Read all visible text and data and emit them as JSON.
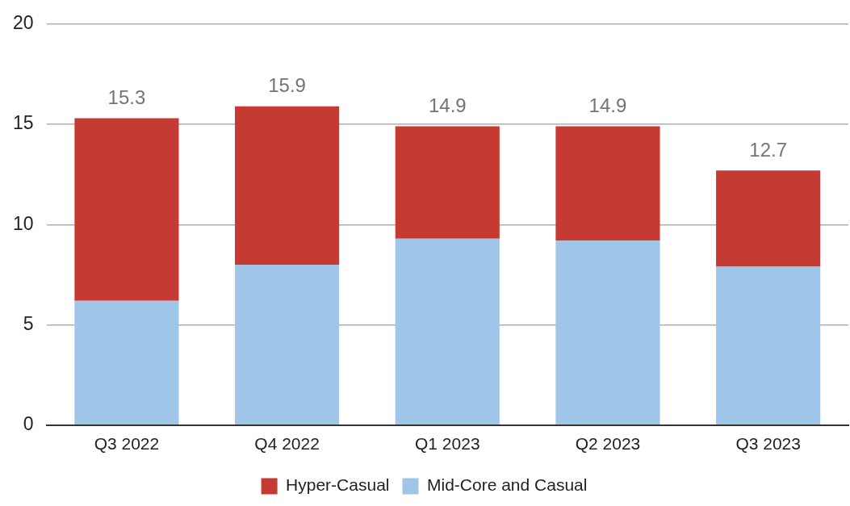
{
  "chart_data": {
    "type": "bar",
    "stacked": true,
    "categories": [
      "Q3 2022",
      "Q4 2022",
      "Q1 2023",
      "Q2 2023",
      "Q3 2023"
    ],
    "series": [
      {
        "name": "Mid-Core and Casual",
        "color": "#9fc5e8",
        "values": [
          6.2,
          8.0,
          9.3,
          9.2,
          7.9
        ]
      },
      {
        "name": "Hyper-Casual",
        "color": "#c53a32",
        "values": [
          9.1,
          7.9,
          5.6,
          5.7,
          4.8
        ]
      }
    ],
    "totals": [
      "15.3",
      "15.9",
      "14.9",
      "14.9",
      "12.7"
    ],
    "ylim": [
      0,
      20
    ],
    "yticks": [
      0,
      5,
      10,
      15,
      20
    ],
    "grid": "y",
    "legend": "bottom"
  }
}
